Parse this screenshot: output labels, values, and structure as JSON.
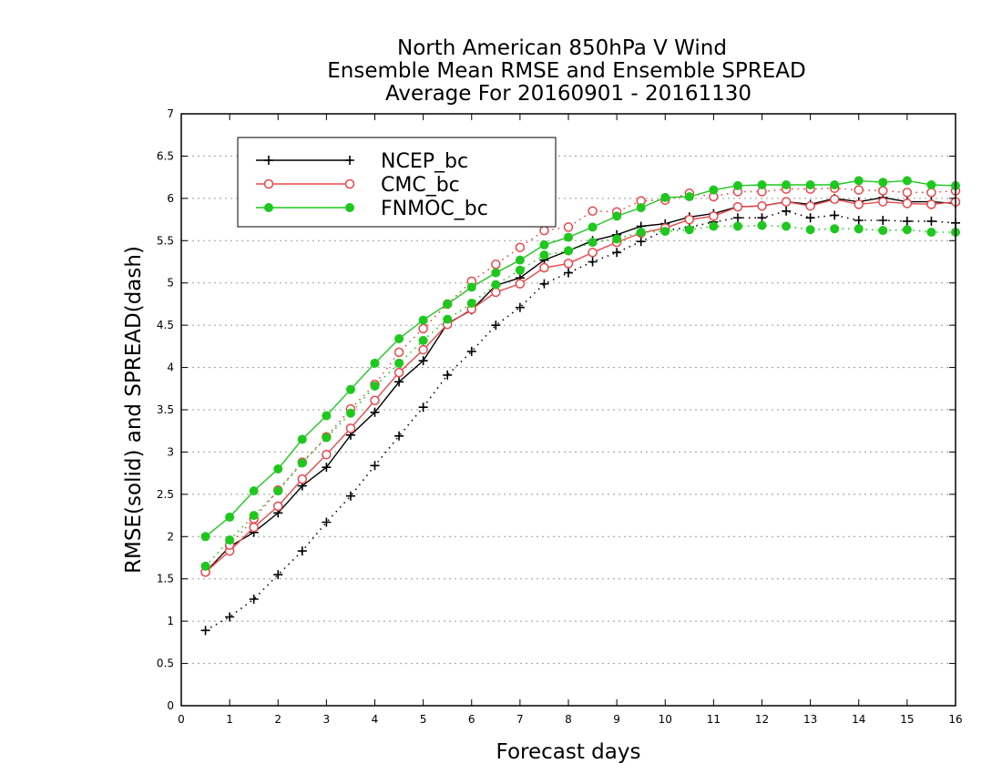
{
  "chart_data": {
    "type": "line",
    "title_lines": [
      "North American 850hPa V Wind",
      "Ensemble Mean RMSE and Ensemble SPREAD",
      "Average For 20160901 - 20161130"
    ],
    "xlabel": "Forecast days",
    "ylabel": "RMSE(solid) and SPREAD(dash)",
    "xlim": [
      0,
      16
    ],
    "ylim": [
      0,
      7
    ],
    "xticks": [
      "0",
      "1",
      "2",
      "3",
      "4",
      "5",
      "6",
      "7",
      "8",
      "9",
      "10",
      "11",
      "12",
      "13",
      "14",
      "15",
      "16"
    ],
    "yticks": [
      "0",
      "0.5",
      "1",
      "1.5",
      "2",
      "2.5",
      "3",
      "3.5",
      "4",
      "4.5",
      "5",
      "5.5",
      "6",
      "6.5",
      "7"
    ],
    "grid": "horizontal dotted",
    "legend_position": "top-left",
    "x": [
      0.5,
      1,
      1.5,
      2,
      2.5,
      3,
      3.5,
      4,
      4.5,
      5,
      5.5,
      6,
      6.5,
      7,
      7.5,
      8,
      8.5,
      9,
      9.5,
      10,
      10.5,
      11,
      11.5,
      12,
      12.5,
      13,
      13.5,
      14,
      14.5,
      15,
      15.5,
      16
    ],
    "series": [
      {
        "name": "NCEP_bc",
        "color": "#000000",
        "marker": "plus",
        "rmse": [
          1.58,
          1.88,
          2.05,
          2.28,
          2.6,
          2.82,
          3.2,
          3.47,
          3.83,
          4.08,
          4.52,
          4.68,
          4.97,
          5.06,
          5.27,
          5.38,
          5.5,
          5.57,
          5.67,
          5.7,
          5.78,
          5.82,
          5.9,
          5.91,
          5.96,
          5.93,
          6.0,
          5.96,
          6.01,
          5.96,
          5.96,
          5.94
        ],
        "spread": [
          0.89,
          1.05,
          1.26,
          1.55,
          1.83,
          2.17,
          2.48,
          2.84,
          3.19,
          3.53,
          3.91,
          4.19,
          4.5,
          4.71,
          4.99,
          5.12,
          5.25,
          5.36,
          5.49,
          5.62,
          5.66,
          5.72,
          5.77,
          5.77,
          5.85,
          5.77,
          5.8,
          5.74,
          5.74,
          5.73,
          5.73,
          5.71
        ]
      },
      {
        "name": "CMC_bc",
        "color": "#e8474a",
        "marker": "open-circle",
        "rmse": [
          1.58,
          1.83,
          2.11,
          2.36,
          2.68,
          2.97,
          3.28,
          3.61,
          3.94,
          4.21,
          4.51,
          4.69,
          4.89,
          4.99,
          5.18,
          5.23,
          5.36,
          5.48,
          5.59,
          5.65,
          5.75,
          5.79,
          5.9,
          5.91,
          5.96,
          5.91,
          5.99,
          5.93,
          5.96,
          5.94,
          5.93,
          5.96
        ],
        "spread": [
          1.58,
          1.9,
          2.21,
          2.55,
          2.88,
          3.18,
          3.51,
          3.8,
          4.18,
          4.46,
          4.75,
          5.02,
          5.22,
          5.42,
          5.62,
          5.66,
          5.85,
          5.84,
          5.97,
          5.98,
          6.06,
          6.02,
          6.08,
          6.08,
          6.11,
          6.11,
          6.12,
          6.1,
          6.09,
          6.07,
          6.07,
          6.09
        ]
      },
      {
        "name": "FNMOC_bc",
        "color": "#1ec81e",
        "marker": "filled-circle",
        "rmse": [
          2.0,
          2.23,
          2.54,
          2.8,
          3.15,
          3.43,
          3.74,
          4.05,
          4.34,
          4.56,
          4.75,
          4.95,
          5.12,
          5.27,
          5.45,
          5.54,
          5.66,
          5.79,
          5.89,
          6.01,
          6.02,
          6.1,
          6.15,
          6.16,
          6.16,
          6.16,
          6.16,
          6.21,
          6.19,
          6.21,
          6.16,
          6.15
        ],
        "spread": [
          1.65,
          1.96,
          2.25,
          2.54,
          2.87,
          3.17,
          3.46,
          3.78,
          4.05,
          4.32,
          4.57,
          4.76,
          4.98,
          5.15,
          5.33,
          5.38,
          5.48,
          5.52,
          5.6,
          5.61,
          5.63,
          5.67,
          5.67,
          5.68,
          5.67,
          5.63,
          5.64,
          5.64,
          5.62,
          5.63,
          5.6,
          5.6
        ]
      }
    ]
  }
}
